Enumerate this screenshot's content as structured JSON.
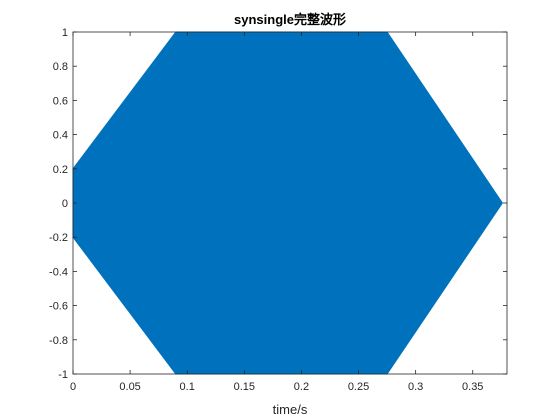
{
  "chart_data": {
    "type": "area",
    "title": "synsingle完整波形",
    "xlabel": "time/s",
    "ylabel": "",
    "xlim": [
      0,
      0.38
    ],
    "ylim": [
      -1,
      1
    ],
    "xticks": [
      0,
      0.05,
      0.1,
      0.15,
      0.2,
      0.25,
      0.3,
      0.35
    ],
    "xtick_labels": [
      "0",
      "0.05",
      "0.1",
      "0.15",
      "0.2",
      "0.25",
      "0.3",
      "0.35"
    ],
    "yticks": [
      -1,
      -0.8,
      -0.6,
      -0.4,
      -0.2,
      0,
      0.2,
      0.4,
      0.6,
      0.8,
      1
    ],
    "ytick_labels": [
      "-1",
      "-0.8",
      "-0.6",
      "-0.4",
      "-0.2",
      "0",
      "0.2",
      "0.4",
      "0.6",
      "0.8",
      "1"
    ],
    "grid": false,
    "fill_color": "#0072BD",
    "series": [
      {
        "x": [
          0,
          0.09,
          0.275,
          0.376
        ],
        "upper": [
          0.2,
          1,
          1,
          0
        ],
        "lower": [
          -0.2,
          -1,
          -1,
          0
        ]
      }
    ]
  }
}
